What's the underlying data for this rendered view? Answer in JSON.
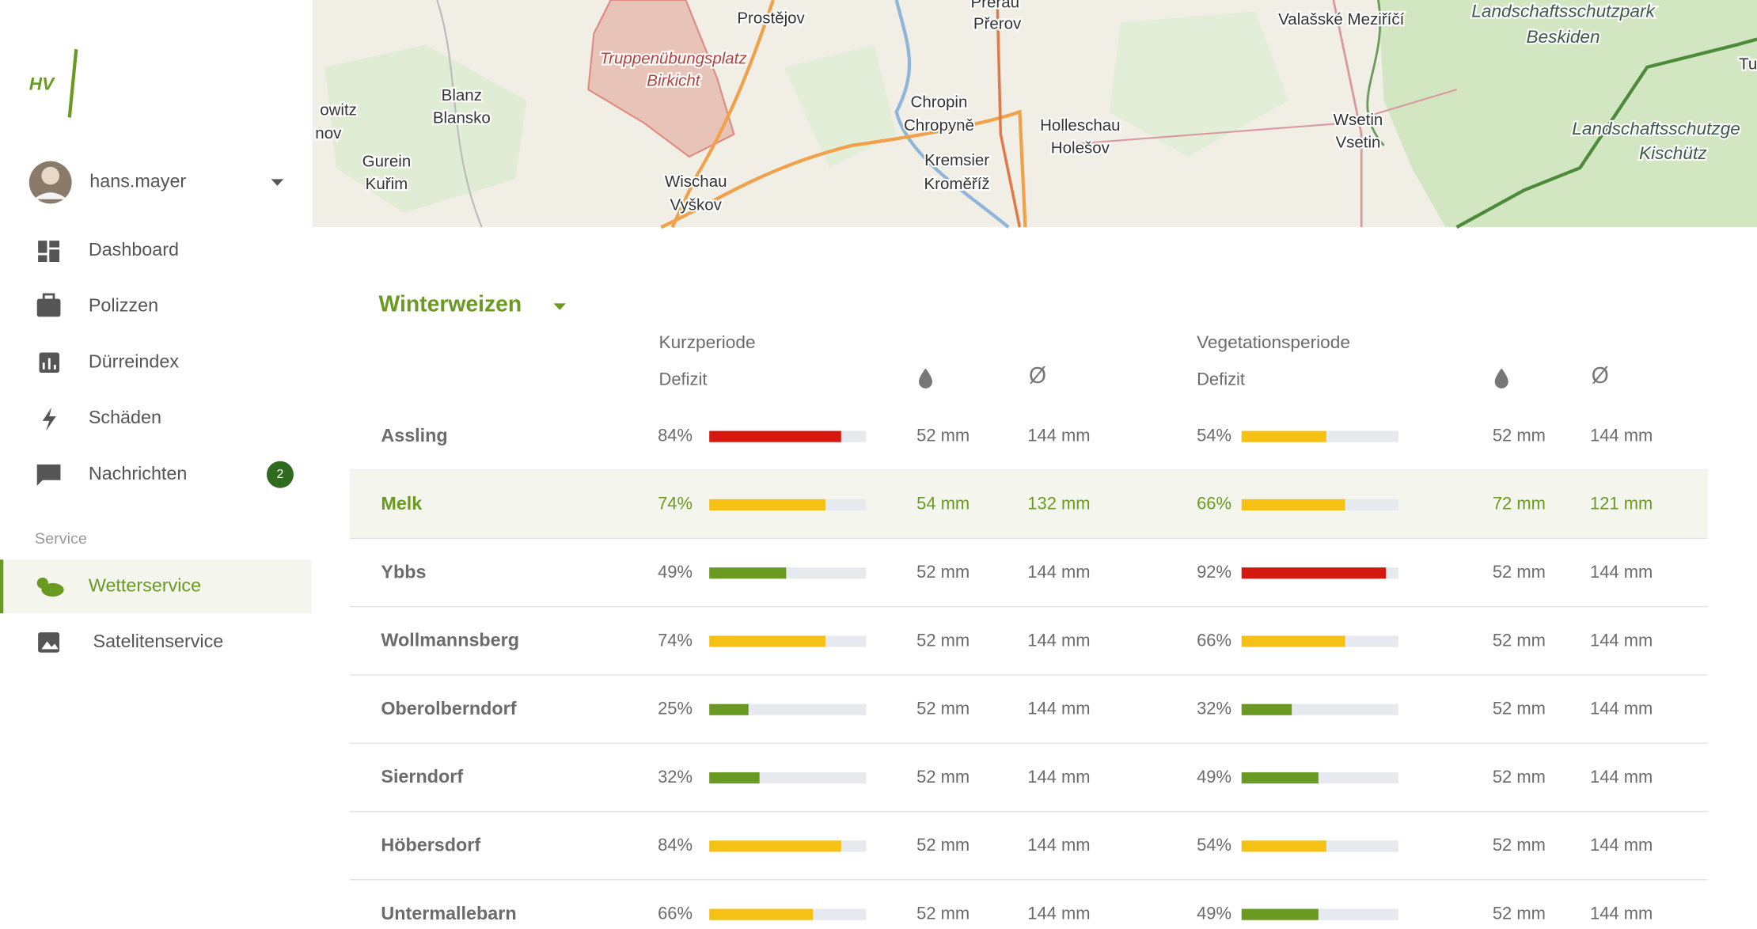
{
  "sidebar": {
    "logo": "HV",
    "user": "hans.mayer",
    "nav": [
      {
        "label": "Dashboard"
      },
      {
        "label": "Polizzen"
      },
      {
        "label": "Dürreindex"
      },
      {
        "label": "Schäden"
      },
      {
        "label": "Nachrichten",
        "badge": "2"
      }
    ],
    "section": "Service",
    "service_nav": [
      {
        "label": "Wetterservice",
        "active": true
      },
      {
        "label": "Satelitenservice",
        "active": false
      }
    ]
  },
  "map": {
    "labels": [
      "Přerau",
      "Prostějov",
      "Přerov",
      "Valašské Meziříčí",
      "Landschaftsschutzpark",
      "Beskiden",
      "Truppenübungsplatz",
      "Birkicht",
      "Blanz",
      "Blansko",
      "owitz",
      "nov",
      "Chropin",
      "Chropyně",
      "Holleschau",
      "Holešov",
      "Wsetin",
      "Vsetin",
      "Landschaftsschutzge",
      "Kischütz",
      "Gurein",
      "Kuřim",
      "Kremsier",
      "Kroměříž",
      "Wischau",
      "Vyškov",
      "Tu"
    ]
  },
  "table": {
    "crop": "Winterweizen",
    "groups": [
      {
        "title": "Kurzperiode",
        "deficit": "Defizit",
        "avg": "Ø"
      },
      {
        "title": "Vegetationsperiode",
        "deficit": "Defizit",
        "avg": "Ø"
      }
    ],
    "selected_row": 1,
    "rows": [
      {
        "name": "Assling",
        "cells": [
          {
            "deficit": "84%",
            "color": "#d4190f",
            "rain": "52 mm",
            "avg": "144 mm"
          },
          {
            "deficit": "54%",
            "color": "#f5c115",
            "rain": "52 mm",
            "avg": "144 mm"
          }
        ]
      },
      {
        "name": "Melk",
        "cells": [
          {
            "deficit": "74%",
            "color": "#f5c115",
            "rain": "54 mm",
            "avg": "132 mm"
          },
          {
            "deficit": "66%",
            "color": "#f5c115",
            "rain": "72 mm",
            "avg": "121 mm"
          }
        ]
      },
      {
        "name": "Ybbs",
        "cells": [
          {
            "deficit": "49%",
            "color": "#6a9a22",
            "rain": "52 mm",
            "avg": "144 mm"
          },
          {
            "deficit": "92%",
            "color": "#d4190f",
            "rain": "52 mm",
            "avg": "144 mm"
          }
        ]
      },
      {
        "name": "Wollmannsberg",
        "cells": [
          {
            "deficit": "74%",
            "color": "#f5c115",
            "rain": "52 mm",
            "avg": "144 mm"
          },
          {
            "deficit": "66%",
            "color": "#f5c115",
            "rain": "52 mm",
            "avg": "144 mm"
          }
        ]
      },
      {
        "name": "Oberolberndorf",
        "cells": [
          {
            "deficit": "25%",
            "color": "#6a9a22",
            "rain": "52 mm",
            "avg": "144 mm"
          },
          {
            "deficit": "32%",
            "color": "#6a9a22",
            "rain": "52 mm",
            "avg": "144 mm"
          }
        ]
      },
      {
        "name": "Sierndorf",
        "cells": [
          {
            "deficit": "32%",
            "color": "#6a9a22",
            "rain": "52 mm",
            "avg": "144 mm"
          },
          {
            "deficit": "49%",
            "color": "#6a9a22",
            "rain": "52 mm",
            "avg": "144 mm"
          }
        ]
      },
      {
        "name": "Höbersdorf",
        "cells": [
          {
            "deficit": "84%",
            "color": "#f5c115",
            "rain": "52 mm",
            "avg": "144 mm"
          },
          {
            "deficit": "54%",
            "color": "#f5c115",
            "rain": "52 mm",
            "avg": "144 mm"
          }
        ]
      },
      {
        "name": "Untermallebarn",
        "cells": [
          {
            "deficit": "66%",
            "color": "#f5c115",
            "rain": "52 mm",
            "avg": "144 mm"
          },
          {
            "deficit": "49%",
            "color": "#6a9a22",
            "rain": "52 mm",
            "avg": "144 mm"
          }
        ]
      }
    ]
  }
}
